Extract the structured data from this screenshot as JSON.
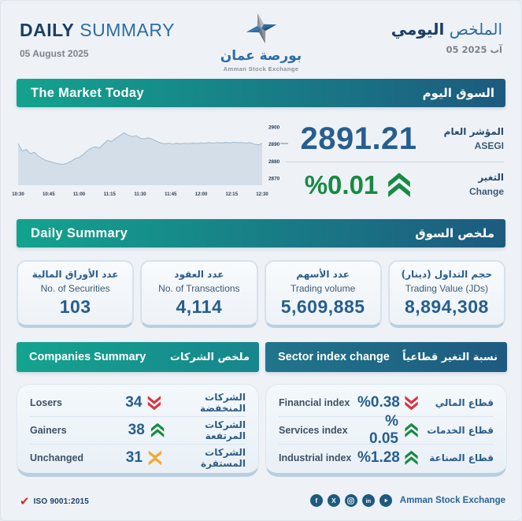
{
  "header": {
    "title_en_bold": "DAILY",
    "title_en_light": "SUMMARY",
    "date_en": "05  August 2025",
    "title_ar_light": "الملخص",
    "title_ar_bold": "اليومي",
    "date_ar": "05 آب 2025",
    "logo_ar": "بورصة عمان",
    "logo_en": "Amman Stock Exchange"
  },
  "market_today": {
    "banner_en": "The Market Today",
    "banner_ar": "السوق اليوم",
    "index_value": "2891.21",
    "index_label_ar": "المؤشر العام",
    "index_label_en": "ASEGI",
    "change_value": "%0.01",
    "change_label_ar": "التغير",
    "change_label_en": "Change"
  },
  "chart_data": {
    "type": "area",
    "title": "ASEGI intraday index",
    "x_ticks": [
      "10:30",
      "10:45",
      "11:00",
      "11:15",
      "11:30",
      "11:45",
      "12:00",
      "12:15",
      "12:30"
    ],
    "y_ticks": [
      2900,
      2890,
      2880,
      2870
    ],
    "ylim": [
      2866,
      2902
    ],
    "grid": false,
    "values": [
      2890.3,
      2886.0,
      2887.0,
      2884.5,
      2885.3,
      2883.0,
      2881.5,
      2880.3,
      2879.8,
      2879.0,
      2878.5,
      2878.2,
      2878.8,
      2880.0,
      2881.5,
      2882.3,
      2884.0,
      2886.2,
      2887.8,
      2888.5,
      2887.8,
      2890.0,
      2892.3,
      2891.6,
      2893.5,
      2895.0,
      2896.7,
      2895.3,
      2894.5,
      2895.0,
      2893.6,
      2893.0,
      2893.8,
      2892.9,
      2891.8,
      2890.8,
      2890.3,
      2890.6,
      2890.1,
      2890.5,
      2890.2,
      2890.6,
      2890.3,
      2890.7,
      2890.4,
      2890.8,
      2890.5,
      2890.9,
      2890.6,
      2891.0,
      2890.7,
      2891.1,
      2890.8,
      2891.2,
      2890.9,
      2891.0,
      2890.6,
      2890.9,
      2890.1,
      2889.7,
      2890.4
    ],
    "close_value": 2891.21
  },
  "daily_summary": {
    "banner_en": "Daily Summary",
    "banner_ar": "ملخص السوق",
    "cards": [
      {
        "ar": "عدد الأوراق المالية",
        "en": "No. of Securities",
        "value": "103"
      },
      {
        "ar": "عدد العقود",
        "en": "No. of Transactions",
        "value": "4,114"
      },
      {
        "ar": "عدد الأسهم",
        "en": "Trading volume",
        "value": "5,609,885"
      },
      {
        "ar": "حجم التداول (دينار)",
        "en": "Trading Value (JDs)",
        "value": "8,894,308"
      }
    ]
  },
  "companies": {
    "banner_en": "Companies Summary",
    "banner_ar": "ملخص الشركات",
    "rows": [
      {
        "en": "Losers",
        "value": "34",
        "direction": "down",
        "ar": "الشركات المنخفضة"
      },
      {
        "en": "Gainers",
        "value": "38",
        "direction": "up",
        "ar": "الشركات المرتفعة"
      },
      {
        "en": "Unchanged",
        "value": "31",
        "direction": "flat",
        "ar": "الشركات المستقرة"
      }
    ]
  },
  "sectors": {
    "banner_en": "Sector index change",
    "banner_ar": "نسبة التغير قطاعياً",
    "rows": [
      {
        "en": "Financial index",
        "value": "%0.38",
        "direction": "down",
        "ar": "قطاع المالي"
      },
      {
        "en": "Services index",
        "value": "% 0.05",
        "direction": "up",
        "ar": "قطاع الخدمات"
      },
      {
        "en": "Industrial index",
        "value": "%1.28",
        "direction": "up",
        "ar": "قطاع الصناعة"
      }
    ]
  },
  "footer": {
    "check_glyph": "✔",
    "iso_label": "ISO 9001:2015",
    "brand": "Amman Stock Exchange",
    "social_glyphs": {
      "facebook": "f",
      "x": "X",
      "linkedin": "in"
    }
  },
  "colors": {
    "teal": "#13a38e",
    "navy": "#1d5a7f",
    "value_blue": "#275e8e",
    "up_green": "#178a43",
    "down_red": "#d63540",
    "flat_orange": "#f2a72e",
    "chart_fill": "#cfdbe6",
    "chart_line": "#a9bfd0"
  }
}
